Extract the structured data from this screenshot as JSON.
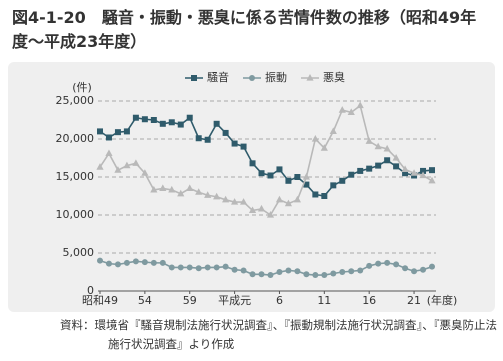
{
  "chart_data": {
    "type": "line",
    "title": "図4-1-20　騒音・振動・悪臭に係る苦情件数の推移（昭和49年度〜平成23年度）",
    "ylabel": "(件)",
    "xlabel": "(年度)",
    "source": "資料：環境省『騒音規制法施行状況調査』、『振動規制法施行状況調査』、『悪臭防止法施行状況調査』より作成",
    "categories": [
      "昭和49",
      null,
      null,
      null,
      null,
      "54",
      null,
      null,
      null,
      null,
      "59",
      null,
      null,
      null,
      null,
      "平成元",
      null,
      null,
      null,
      null,
      "6",
      null,
      null,
      null,
      null,
      "11",
      null,
      null,
      null,
      null,
      "16",
      null,
      null,
      null,
      null,
      "21",
      null,
      null
    ],
    "ylim": [
      0,
      25000
    ],
    "yticks": [
      0,
      {
        "value": 5000,
        "label": "5,000"
      },
      {
        "value": 10000,
        "label": "10,000"
      },
      {
        "value": 15000,
        "label": "15,000"
      },
      {
        "value": 20000,
        "label": "20,000"
      },
      {
        "value": 25000,
        "label": "25,000"
      }
    ],
    "grid": true,
    "legend": "top",
    "series": [
      {
        "name": "騒音",
        "color": "#2f5b6b",
        "marker": "square",
        "values": [
          21000,
          20200,
          20900,
          21000,
          22800,
          22600,
          22500,
          22000,
          22200,
          21900,
          22800,
          20100,
          19900,
          22000,
          20800,
          19400,
          19000,
          16800,
          15500,
          15200,
          16000,
          14500,
          15000,
          14000,
          12700,
          12500,
          13900,
          14500,
          15300,
          15800,
          16100,
          16500,
          17200,
          16400,
          15500,
          15200,
          15800,
          15900
        ]
      },
      {
        "name": "振動",
        "color": "#7f9aa0",
        "marker": "circle",
        "values": [
          4000,
          3600,
          3500,
          3700,
          3900,
          3800,
          3700,
          3700,
          3100,
          3100,
          3100,
          3000,
          3100,
          3100,
          3200,
          2800,
          2700,
          2200,
          2200,
          2100,
          2500,
          2700,
          2600,
          2200,
          2100,
          2100,
          2300,
          2500,
          2600,
          2700,
          3300,
          3600,
          3700,
          3500,
          3000,
          2600,
          2800,
          3200
        ]
      },
      {
        "name": "悪臭",
        "color": "#b9b9b9",
        "marker": "triangle",
        "values": [
          16300,
          18100,
          15900,
          16500,
          16800,
          15500,
          13300,
          13500,
          13300,
          12800,
          13500,
          13000,
          12600,
          12400,
          12000,
          11700,
          11700,
          10600,
          10800,
          10000,
          12000,
          11500,
          12000,
          15000,
          20000,
          18800,
          21000,
          23800,
          23500,
          24400,
          19700,
          19000,
          18700,
          17500,
          16000,
          15500,
          15200,
          14500
        ]
      }
    ]
  }
}
